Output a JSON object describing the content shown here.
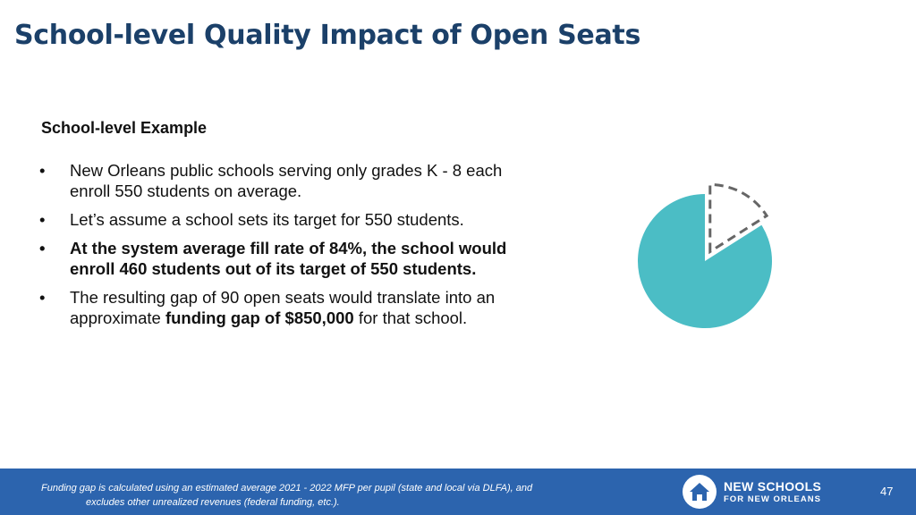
{
  "slide": {
    "title": "School-level Quality Impact of Open Seats",
    "section_heading": "School-level Example",
    "bullets": [
      {
        "marker": "•",
        "text": "New Orleans public schools serving only grades K - 8 each enroll 550 students on average."
      },
      {
        "marker": "•",
        "text": "Let’s assume a school sets its target for 550 students."
      },
      {
        "marker": "•",
        "text": "At the system average fill rate of 84%, the school would enroll 460 students out of its target of 550 students."
      },
      {
        "marker": "•",
        "text_before": "The resulting gap of 90 open seats would translate into an approximate ",
        "text_bold": "funding gap of $850,000",
        "text_after": " for that school."
      }
    ]
  },
  "pie": {
    "filled_fraction": 0.84,
    "filled_color": "#4bbdc5",
    "gap_outline_color": "#666666"
  },
  "footer": {
    "footnote_line1": "Funding gap is calculated using an estimated average 2021 - 2022 MFP per pupil (state and local via DLFA), and",
    "footnote_line2": "excludes other unrealized revenues (federal funding, etc.).",
    "logo_line1": "NEW SCHOOLS",
    "logo_line2": "FOR NEW ORLEANS",
    "page_number": "47",
    "background_color": "#2c64ae"
  }
}
